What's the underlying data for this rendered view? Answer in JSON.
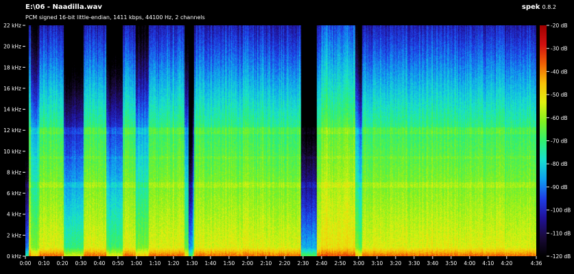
{
  "header": {
    "file_path": "E:\\06 - Naadilla.wav",
    "app_name": "spek",
    "app_version": "0.8.2",
    "stream_info": "PCM signed 16-bit little-endian, 1411 kbps, 44100 Hz, 2 channels"
  },
  "spectrogram": {
    "frequency_axis": {
      "max_khz": 22,
      "ticks": [
        "0 kHz",
        "2 kHz",
        "4 kHz",
        "6 kHz",
        "8 kHz",
        "10 kHz",
        "12 kHz",
        "14 kHz",
        "16 kHz",
        "18 kHz",
        "20 kHz",
        "22 kHz"
      ]
    },
    "time_axis": {
      "duration_seconds": 276,
      "ticks": [
        "0:00",
        "0:10",
        "0:20",
        "0:30",
        "0:40",
        "0:50",
        "1:00",
        "1:10",
        "1:20",
        "1:30",
        "1:40",
        "1:50",
        "2:00",
        "2:10",
        "2:20",
        "2:30",
        "2:40",
        "2:50",
        "3:00",
        "3:10",
        "3:20",
        "3:30",
        "3:40",
        "3:50",
        "4:00",
        "4:10",
        "4:20",
        "4:36"
      ]
    },
    "dynamic_range_axis": {
      "min_db": -120,
      "max_db": -20,
      "ticks": [
        "-20 dB",
        "-30 dB",
        "-40 dB",
        "-50 dB",
        "-60 dB",
        "-70 dB",
        "-80 dB",
        "-90 dB",
        "-100 dB",
        "-110 dB",
        "-120 dB"
      ]
    },
    "colormap_stops": [
      "#000000",
      "#1a0a3a",
      "#20129a",
      "#1f3fe8",
      "#0fa0f0",
      "#18e0d0",
      "#30f070",
      "#80f020",
      "#e0f010",
      "#f8c008",
      "#f06004",
      "#d01010",
      "#a00000"
    ]
  }
}
